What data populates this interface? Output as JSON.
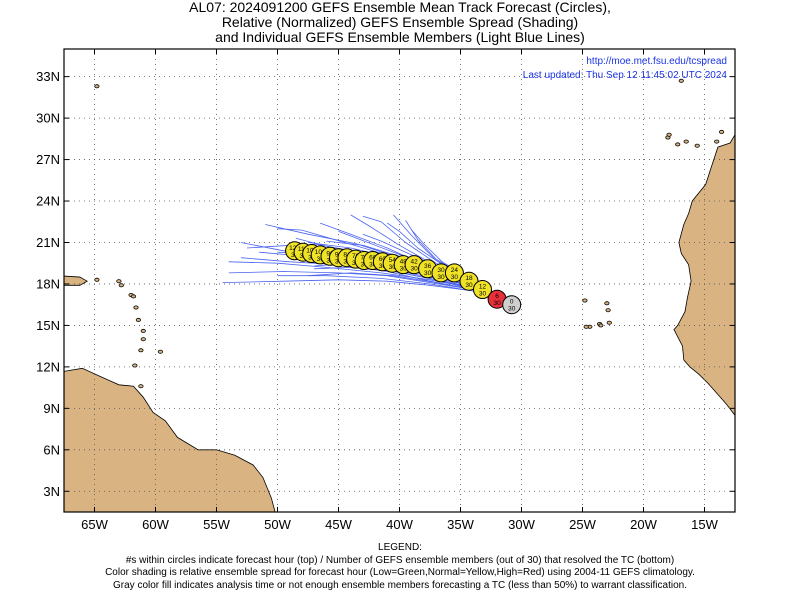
{
  "title": {
    "line1": "AL07: 2024091200 GEFS Ensemble Mean Track Forecast (Circles),",
    "line2": "Relative (Normalized) GEFS Ensemble Spread (Shading)",
    "line3": "and Individual GEFS Ensemble Members (Light Blue Lines)"
  },
  "info": {
    "url": "http://moe.met.fsu.edu/tcspread",
    "updated": "Last updated: Thu Sep 12 11:45:02 UTC 2024"
  },
  "map": {
    "lon_range": [
      -67.5,
      -12.5
    ],
    "lat_range": [
      1.5,
      35.0
    ],
    "lon_ticks": [
      {
        "value": -65,
        "label": "65W"
      },
      {
        "value": -60,
        "label": "60W"
      },
      {
        "value": -55,
        "label": "55W"
      },
      {
        "value": -50,
        "label": "50W"
      },
      {
        "value": -45,
        "label": "45W"
      },
      {
        "value": -40,
        "label": "40W"
      },
      {
        "value": -35,
        "label": "35W"
      },
      {
        "value": -30,
        "label": "30W"
      },
      {
        "value": -25,
        "label": "25W"
      },
      {
        "value": -20,
        "label": "20W"
      },
      {
        "value": -15,
        "label": "15W"
      }
    ],
    "lat_ticks": [
      {
        "value": 3,
        "label": "3N"
      },
      {
        "value": 6,
        "label": "6N"
      },
      {
        "value": 9,
        "label": "9N"
      },
      {
        "value": 12,
        "label": "12N"
      },
      {
        "value": 15,
        "label": "15N"
      },
      {
        "value": 18,
        "label": "18N"
      },
      {
        "value": 21,
        "label": "21N"
      },
      {
        "value": 24,
        "label": "24N"
      },
      {
        "value": 27,
        "label": "27N"
      },
      {
        "value": 30,
        "label": "30N"
      },
      {
        "value": 33,
        "label": "33N"
      }
    ],
    "colors": {
      "land": "#d9b381",
      "ocean": "#ffffff",
      "member_lines": "#4a63f0",
      "normal": "#f0e226",
      "high": "#e8303a",
      "gray": "#cfcfcf",
      "info_text": "#1a33e6"
    }
  },
  "mean_track": [
    {
      "hour": "0",
      "members": "30",
      "lon": -30.8,
      "lat": 16.5,
      "class": "gray"
    },
    {
      "hour": "6",
      "members": "30",
      "lon": -32.0,
      "lat": 16.9,
      "class": "high"
    },
    {
      "hour": "12",
      "members": "30",
      "lon": -33.2,
      "lat": 17.6,
      "class": "normal"
    },
    {
      "hour": "18",
      "members": "30",
      "lon": -34.3,
      "lat": 18.2,
      "class": "normal"
    },
    {
      "hour": "24",
      "members": "30",
      "lon": -35.5,
      "lat": 18.8,
      "class": "normal"
    },
    {
      "hour": "30",
      "members": "30",
      "lon": -36.6,
      "lat": 18.8,
      "class": "normal"
    },
    {
      "hour": "36",
      "members": "30",
      "lon": -37.7,
      "lat": 19.1,
      "class": "normal"
    },
    {
      "hour": "42",
      "members": "30",
      "lon": -38.8,
      "lat": 19.4,
      "class": "normal"
    },
    {
      "hour": "48",
      "members": "30",
      "lon": -39.7,
      "lat": 19.4,
      "class": "normal"
    },
    {
      "hour": "54",
      "members": "30",
      "lon": -40.6,
      "lat": 19.5,
      "class": "normal"
    },
    {
      "hour": "60",
      "members": "30",
      "lon": -41.4,
      "lat": 19.6,
      "class": "normal"
    },
    {
      "hour": "66",
      "members": "30",
      "lon": -42.2,
      "lat": 19.7,
      "class": "normal"
    },
    {
      "hour": "72",
      "members": "30",
      "lon": -42.9,
      "lat": 19.7,
      "class": "normal"
    },
    {
      "hour": "78",
      "members": "30",
      "lon": -43.6,
      "lat": 19.8,
      "class": "normal"
    },
    {
      "hour": "84",
      "members": "30",
      "lon": -44.3,
      "lat": 19.9,
      "class": "normal"
    },
    {
      "hour": "90",
      "members": "30",
      "lon": -45.0,
      "lat": 19.9,
      "class": "normal"
    },
    {
      "hour": "96",
      "members": "30",
      "lon": -45.7,
      "lat": 20.0,
      "class": "normal"
    },
    {
      "hour": "102",
      "members": "30",
      "lon": -46.5,
      "lat": 20.1,
      "class": "normal"
    },
    {
      "hour": "108",
      "members": "30",
      "lon": -47.2,
      "lat": 20.2,
      "class": "normal"
    },
    {
      "hour": "114",
      "members": "30",
      "lon": -47.9,
      "lat": 20.3,
      "class": "normal"
    },
    {
      "hour": "120",
      "members": "30",
      "lon": -48.6,
      "lat": 20.4,
      "class": "normal"
    }
  ],
  "members": [
    [
      [
        -31.3,
        16.9
      ],
      [
        -34,
        17.8
      ],
      [
        -37,
        18.6
      ],
      [
        -41,
        19.5
      ],
      [
        -45,
        20.5
      ],
      [
        -48.5,
        21.3
      ]
    ],
    [
      [
        -31.3,
        16.9
      ],
      [
        -34,
        18.1
      ],
      [
        -37,
        19.3
      ],
      [
        -40,
        20.8
      ],
      [
        -42.5,
        22.2
      ],
      [
        -44,
        23.0
      ]
    ],
    [
      [
        -31.3,
        16.9
      ],
      [
        -34,
        18.2
      ],
      [
        -37,
        19.5
      ],
      [
        -39.5,
        21.0
      ],
      [
        -41.5,
        22.5
      ],
      [
        -43,
        22.9
      ]
    ],
    [
      [
        -31.3,
        16.9
      ],
      [
        -34,
        18.3
      ],
      [
        -37,
        19.7
      ],
      [
        -39,
        21.5
      ],
      [
        -40.5,
        23.0
      ]
    ],
    [
      [
        -31.3,
        16.9
      ],
      [
        -34,
        18.0
      ],
      [
        -37.5,
        19.2
      ],
      [
        -41,
        20.6
      ],
      [
        -44,
        21.6
      ],
      [
        -46.5,
        22.4
      ]
    ],
    [
      [
        -31.3,
        16.9
      ],
      [
        -34,
        17.9
      ],
      [
        -37.5,
        18.8
      ],
      [
        -41,
        19.8
      ],
      [
        -45,
        20.4
      ],
      [
        -49,
        20.8
      ],
      [
        -52.5,
        20.6
      ]
    ],
    [
      [
        -31.3,
        16.9
      ],
      [
        -34,
        17.7
      ],
      [
        -37.5,
        18.4
      ],
      [
        -41,
        19.0
      ],
      [
        -45,
        19.4
      ],
      [
        -49,
        19.6
      ],
      [
        -53,
        19.9
      ]
    ],
    [
      [
        -31.3,
        16.9
      ],
      [
        -34,
        17.6
      ],
      [
        -37.5,
        18.1
      ],
      [
        -41,
        18.6
      ],
      [
        -45,
        18.8
      ],
      [
        -49.5,
        18.9
      ],
      [
        -54,
        18.8
      ]
    ],
    [
      [
        -31.3,
        16.9
      ],
      [
        -34,
        17.5
      ],
      [
        -37.5,
        17.9
      ],
      [
        -41,
        18.2
      ],
      [
        -45,
        18.3
      ],
      [
        -49.5,
        18.2
      ],
      [
        -54.5,
        18.1
      ]
    ],
    [
      [
        -31.3,
        16.9
      ],
      [
        -34,
        17.8
      ],
      [
        -37.5,
        18.6
      ],
      [
        -41,
        19.3
      ],
      [
        -45,
        19.9
      ],
      [
        -49.5,
        20.4
      ],
      [
        -53,
        21.0
      ]
    ],
    [
      [
        -31.3,
        16.9
      ],
      [
        -34,
        17.9
      ],
      [
        -37,
        18.9
      ],
      [
        -40,
        19.9
      ],
      [
        -43.5,
        20.9
      ],
      [
        -47.5,
        21.6
      ],
      [
        -51,
        22.3
      ]
    ],
    [
      [
        -31.3,
        16.9
      ],
      [
        -34,
        17.7
      ],
      [
        -37,
        18.4
      ],
      [
        -41,
        19.1
      ],
      [
        -45,
        19.7
      ],
      [
        -49,
        20.1
      ],
      [
        -51.5,
        20.3
      ]
    ],
    [
      [
        -31.3,
        16.9
      ],
      [
        -34,
        18.0
      ],
      [
        -37,
        19.1
      ],
      [
        -40,
        20.0
      ],
      [
        -43,
        20.8
      ],
      [
        -46,
        21.1
      ]
    ],
    [
      [
        -31.3,
        16.9
      ],
      [
        -34,
        17.8
      ],
      [
        -37,
        18.5
      ],
      [
        -40.5,
        19.2
      ],
      [
        -44,
        19.5
      ],
      [
        -47,
        19.3
      ]
    ],
    [
      [
        -31.3,
        16.9
      ],
      [
        -34,
        17.6
      ],
      [
        -37,
        18.1
      ],
      [
        -40.5,
        18.6
      ],
      [
        -44,
        18.8
      ],
      [
        -47.5,
        18.6
      ]
    ],
    [
      [
        -31.3,
        16.9
      ],
      [
        -34,
        18.1
      ],
      [
        -37,
        19.3
      ],
      [
        -39.5,
        20.3
      ],
      [
        -41.5,
        21.1
      ],
      [
        -43,
        21.6
      ]
    ],
    [
      [
        -31.3,
        16.9
      ],
      [
        -34,
        18.2
      ],
      [
        -37,
        19.8
      ],
      [
        -38.5,
        21.2
      ],
      [
        -39.5,
        22.6
      ]
    ],
    [
      [
        -31.3,
        16.9
      ],
      [
        -34,
        17.9
      ],
      [
        -37.5,
        19.0
      ],
      [
        -41,
        20.1
      ],
      [
        -44.5,
        21.0
      ],
      [
        -48,
        21.9
      ],
      [
        -50,
        22.0
      ]
    ],
    [
      [
        -31.3,
        16.9
      ],
      [
        -34,
        17.7
      ],
      [
        -37.5,
        18.3
      ],
      [
        -41.5,
        18.8
      ],
      [
        -46,
        19.2
      ],
      [
        -50,
        19.5
      ],
      [
        -54,
        19.6
      ]
    ],
    [
      [
        -31.3,
        16.9
      ],
      [
        -34,
        17.5
      ],
      [
        -37.5,
        18.0
      ],
      [
        -41.5,
        18.4
      ],
      [
        -46,
        18.6
      ],
      [
        -50,
        18.6
      ]
    ],
    [
      [
        -31.3,
        16.9
      ],
      [
        -34,
        18.0
      ],
      [
        -37,
        19.0
      ],
      [
        -40.5,
        19.9
      ],
      [
        -44,
        20.6
      ],
      [
        -47.5,
        21.0
      ]
    ],
    [
      [
        -31.3,
        16.9
      ],
      [
        -34,
        18.2
      ],
      [
        -36.5,
        19.4
      ],
      [
        -38.5,
        20.6
      ],
      [
        -40,
        21.8
      ],
      [
        -41,
        22.4
      ]
    ],
    [
      [
        -31.3,
        16.9
      ],
      [
        -34,
        17.8
      ],
      [
        -37.5,
        18.7
      ],
      [
        -41.5,
        19.4
      ],
      [
        -45.5,
        20.1
      ],
      [
        -48.5,
        20.5
      ]
    ],
    [
      [
        -31.3,
        16.9
      ],
      [
        -34,
        17.9
      ],
      [
        -37,
        18.8
      ],
      [
        -40,
        19.6
      ],
      [
        -43,
        20.3
      ],
      [
        -46.5,
        20.6
      ]
    ],
    [
      [
        -31.3,
        16.9
      ],
      [
        -34,
        17.6
      ],
      [
        -37.5,
        18.2
      ],
      [
        -41,
        18.9
      ],
      [
        -44,
        19.3
      ],
      [
        -46,
        19.5
      ]
    ],
    [
      [
        -31.3,
        16.9
      ],
      [
        -34,
        18.1
      ],
      [
        -37,
        19.2
      ],
      [
        -40.5,
        20.3
      ],
      [
        -43.5,
        21.3
      ],
      [
        -45,
        21.8
      ]
    ],
    [
      [
        -31.3,
        16.9
      ],
      [
        -34,
        18.3
      ],
      [
        -36.5,
        19.6
      ],
      [
        -38,
        20.9
      ],
      [
        -39,
        21.9
      ]
    ],
    [
      [
        -31.3,
        16.9
      ],
      [
        -34,
        17.8
      ],
      [
        -37,
        18.6
      ],
      [
        -40.5,
        19.3
      ],
      [
        -44,
        19.9
      ],
      [
        -47.5,
        20.2
      ],
      [
        -50,
        20.3
      ]
    ],
    [
      [
        -31.3,
        16.9
      ],
      [
        -34,
        17.6
      ],
      [
        -37,
        18.3
      ],
      [
        -40.5,
        18.9
      ],
      [
        -44,
        19.2
      ],
      [
        -47,
        19.1
      ]
    ],
    [
      [
        -31.3,
        16.9
      ],
      [
        -34,
        17.9
      ],
      [
        -37.5,
        18.9
      ],
      [
        -41,
        19.8
      ],
      [
        -44.5,
        20.5
      ],
      [
        -47,
        20.9
      ]
    ]
  ],
  "legend": {
    "heading": "LEGEND:",
    "line1": "#s within circles indicate forecast hour (top) / Number of GEFS ensemble members (out of 30) that resolved the TC (bottom)",
    "line2": "Color shading is relative ensemble spread for forecast hour (Low=Green,Normal=Yellow,High=Red) using 2004-11 GEFS climatology.",
    "line3": "Gray color fill indicates analysis time or not enough ensemble members forecasting a TC (less than 50%) to warrant classification."
  }
}
